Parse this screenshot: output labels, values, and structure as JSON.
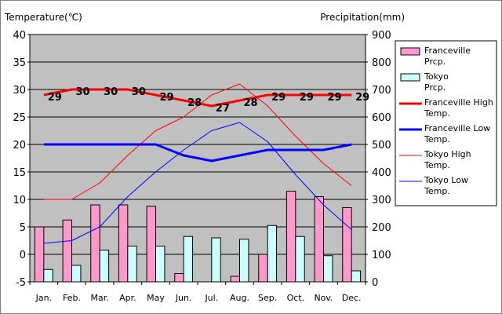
{
  "chart_data": {
    "type": "bar+line",
    "categories": [
      "Jan.",
      "Feb.",
      "Mar.",
      "Apr.",
      "May",
      "Jun.",
      "Jul.",
      "Aug.",
      "Sep.",
      "Oct.",
      "Nov.",
      "Dec."
    ],
    "y_left": {
      "label": "Temperature(℃)",
      "min": -5,
      "max": 40,
      "step": 5
    },
    "y_right": {
      "label": "Precipitation(mm)",
      "min": 0,
      "max": 900,
      "step": 100
    },
    "grid": true,
    "plot_background": "#c0c0c0",
    "legend_position": "right",
    "bars": [
      {
        "name": "Franceville Prcp.",
        "color": "#ff99cc",
        "values": [
          200,
          225,
          280,
          280,
          275,
          30,
          0,
          20,
          100,
          330,
          310,
          270
        ]
      },
      {
        "name": "Tokyo Prcp.",
        "color": "#ccffff",
        "values": [
          45,
          60,
          115,
          130,
          130,
          165,
          160,
          155,
          205,
          165,
          95,
          40
        ]
      }
    ],
    "lines": [
      {
        "name": "Franceville High Temp.",
        "color": "#ff0000",
        "width": "thick",
        "values": [
          29,
          30,
          30,
          30,
          29,
          28,
          27,
          28,
          29,
          29,
          29,
          29
        ],
        "data_labels": [
          "29",
          "30",
          "30",
          "30",
          "29",
          "28",
          "27",
          "28",
          "29",
          "29",
          "29",
          "29"
        ]
      },
      {
        "name": "Franceville Low Temp.",
        "color": "#0000ff",
        "width": "thick",
        "values": [
          20,
          20,
          20,
          20,
          20,
          18,
          17,
          18,
          19,
          19,
          19,
          20
        ]
      },
      {
        "name": "Tokyo High Temp.",
        "color": "#ff0000",
        "width": "thin",
        "values": [
          10,
          10,
          13,
          18,
          22.5,
          25,
          29,
          31,
          27,
          21.5,
          16.5,
          12.5
        ]
      },
      {
        "name": "Tokyo Low Temp.",
        "color": "#0000ff",
        "width": "thin",
        "values": [
          2,
          2.5,
          5,
          10.5,
          15,
          19,
          22.5,
          24,
          20.5,
          14.5,
          9,
          4.5
        ]
      }
    ],
    "legend": [
      {
        "label": "Franceville Prcp.",
        "kind": "box",
        "color": "#ff99cc"
      },
      {
        "label": "Tokyo Prcp.",
        "kind": "box",
        "color": "#ccffff"
      },
      {
        "label": "Franceville High Temp.",
        "kind": "line",
        "color": "#ff0000",
        "width": "thick"
      },
      {
        "label": "Franceville Low Temp.",
        "kind": "line",
        "color": "#0000ff",
        "width": "thick"
      },
      {
        "label": "Tokyo High Temp.",
        "kind": "line",
        "color": "#ff0000",
        "width": "thin"
      },
      {
        "label": "Tokyo Low Temp.",
        "kind": "line",
        "color": "#0000ff",
        "width": "thin"
      }
    ]
  }
}
